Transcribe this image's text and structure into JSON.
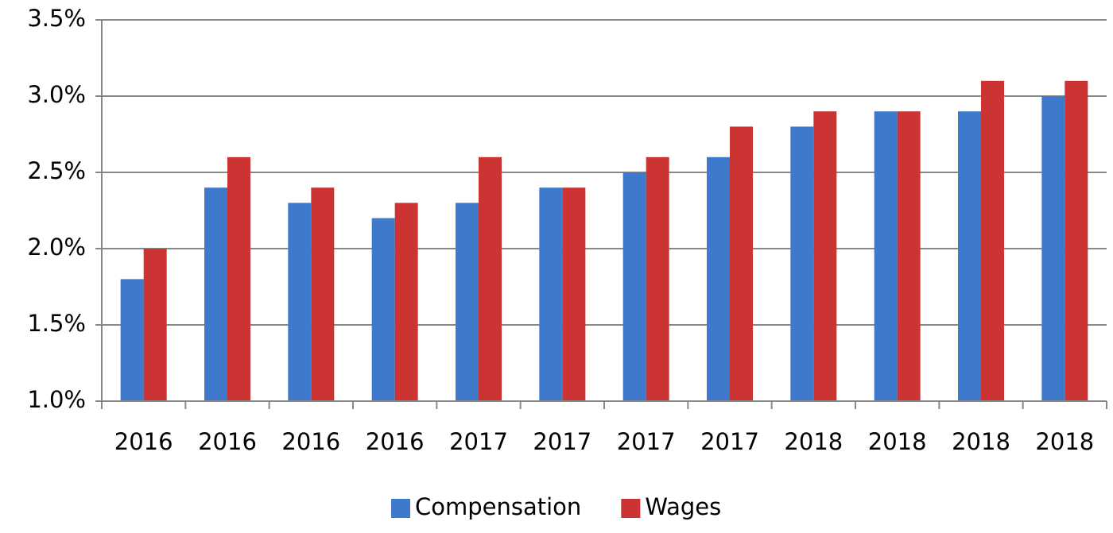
{
  "chart_data": {
    "type": "bar",
    "categories": [
      "2016",
      "2016",
      "2016",
      "2016",
      "2017",
      "2017",
      "2017",
      "2017",
      "2018",
      "2018",
      "2018",
      "2018"
    ],
    "series": [
      {
        "name": "Compensation",
        "color": "#3f79cc",
        "values": [
          1.8,
          2.4,
          2.3,
          2.2,
          2.3,
          2.4,
          2.5,
          2.6,
          2.8,
          2.9,
          2.9,
          3.0
        ]
      },
      {
        "name": "Wages",
        "color": "#cc3333",
        "values": [
          2.0,
          2.6,
          2.4,
          2.3,
          2.6,
          2.4,
          2.6,
          2.8,
          2.9,
          2.9,
          3.1,
          3.1
        ]
      }
    ],
    "ylim": [
      1.0,
      3.5
    ],
    "yticks": [
      {
        "value": 1.0,
        "label": "1.0%"
      },
      {
        "value": 1.5,
        "label": "1.5%"
      },
      {
        "value": 2.0,
        "label": "2.0%"
      },
      {
        "value": 2.5,
        "label": "2.5%"
      },
      {
        "value": 3.0,
        "label": "3.0%"
      },
      {
        "value": 3.5,
        "label": "3.5%"
      }
    ],
    "grid": true,
    "legend": "bottom"
  }
}
